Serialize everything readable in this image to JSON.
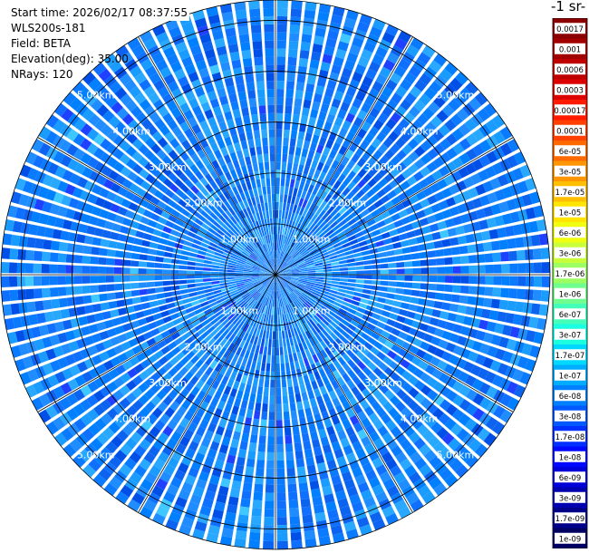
{
  "header": {
    "start_time": "Start time: 2026/02/17 08:37:55",
    "instrument": "WLS200s-181",
    "field": "Field: BETA",
    "elevation": "Elevation(deg): 35.00",
    "nrays": "NRays: 120"
  },
  "colorbar": {
    "unit_label": "-1 sr-",
    "ticks": [
      "0.0017",
      "0.001",
      "0.0006",
      "0.0003",
      "0.00017",
      "0.0001",
      "6e-05",
      "3e-05",
      "1.7e-05",
      "1e-05",
      "6e-06",
      "3e-06",
      "1.7e-06",
      "1e-06",
      "6e-07",
      "3e-07",
      "1.7e-07",
      "1e-07",
      "6e-08",
      "3e-08",
      "1.7e-08",
      "1e-08",
      "6e-09",
      "3e-09",
      "1.7e-09",
      "1e-09"
    ],
    "colors": [
      "#8b0000",
      "#a20000",
      "#be0000",
      "#dc0000",
      "#ff1a00",
      "#ff4000",
      "#ff6a00",
      "#ff9500",
      "#ffbf00",
      "#ffe500",
      "#f0ff10",
      "#c8ff3a",
      "#9cff62",
      "#70ff8e",
      "#44ffba",
      "#1affe2",
      "#00d8ff",
      "#00acff",
      "#0080ff",
      "#0058ff",
      "#0030ff",
      "#0008ff",
      "#0000d8",
      "#0000b0",
      "#00008a",
      "#000064"
    ]
  },
  "chart_data": {
    "type": "heatmap",
    "projection": "polar-ppi",
    "field": "BETA",
    "elevation_deg": 35.0,
    "n_rays": 120,
    "range_rings_km": [
      1,
      2,
      3,
      4,
      5
    ],
    "max_range_km": 5.4,
    "ring_labels": [
      "1.00km",
      "2.00km",
      "3.00km",
      "4.00km",
      "5.00km"
    ],
    "spoke_angles_deg": [
      0,
      30,
      60,
      90,
      120,
      150
    ],
    "typical_value_range": [
      "6e-08",
      "3e-08"
    ]
  }
}
